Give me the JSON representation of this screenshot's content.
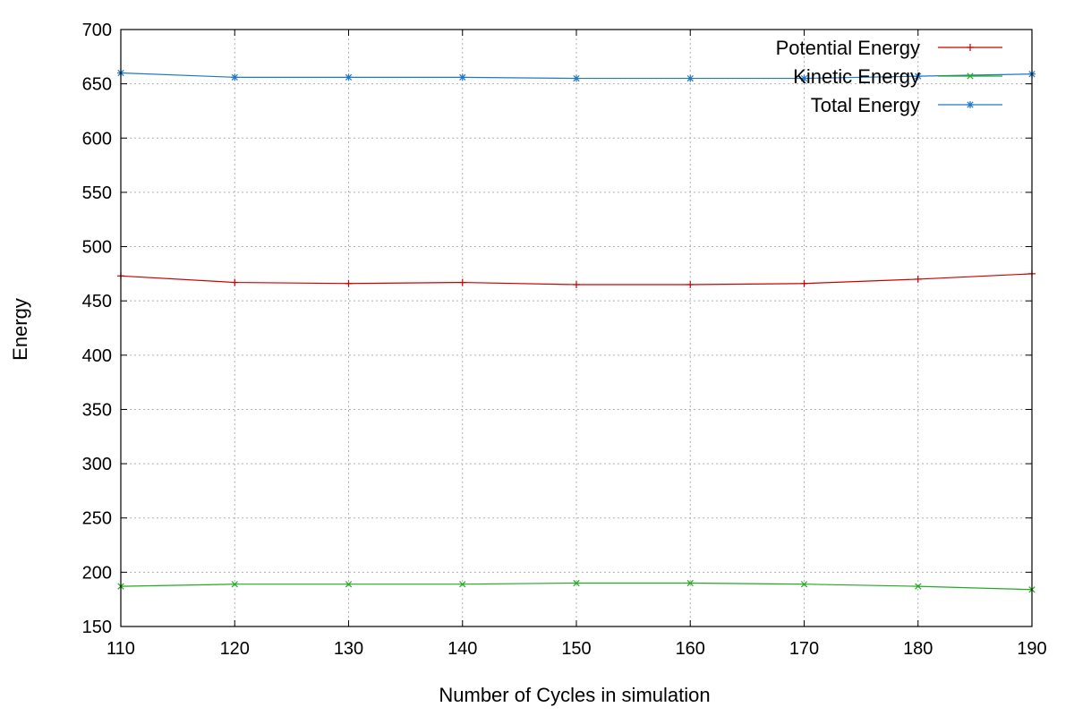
{
  "chart_data": {
    "type": "line",
    "title": "",
    "xlabel": "Number of Cycles in simulation",
    "ylabel": "Energy",
    "x": [
      110,
      120,
      130,
      140,
      150,
      160,
      170,
      180,
      190
    ],
    "xlim": [
      110,
      190
    ],
    "ylim": [
      150,
      700
    ],
    "xticks": [
      110,
      120,
      130,
      140,
      150,
      160,
      170,
      180,
      190
    ],
    "yticks": [
      150,
      200,
      250,
      300,
      350,
      400,
      450,
      500,
      550,
      600,
      650,
      700
    ],
    "grid": true,
    "legend_position": "top-right",
    "series": [
      {
        "name": "Potential Energy",
        "color": "#cc0000",
        "marker": "plus",
        "values": [
          473,
          467,
          466,
          467,
          465,
          465,
          466,
          470,
          475
        ]
      },
      {
        "name": "Kinetic Energy",
        "color": "#22aa22",
        "marker": "cross",
        "values": [
          187,
          189,
          189,
          189,
          190,
          190,
          189,
          187,
          184
        ]
      },
      {
        "name": "Total Energy",
        "color": "#1f77c8",
        "marker": "star",
        "values": [
          660,
          656,
          656,
          656,
          655,
          655,
          655,
          657,
          659
        ]
      }
    ]
  }
}
